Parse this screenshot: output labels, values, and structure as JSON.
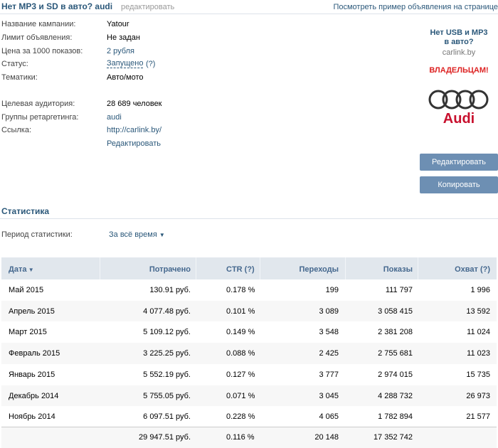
{
  "header": {
    "title": "Нет MP3 и SD в авто? audi",
    "edit": "редактировать",
    "preview_link": "Посмотреть пример объявления на странице"
  },
  "fields": [
    {
      "label": "Название кампании:",
      "value": "Yatour"
    },
    {
      "label": "Лимит объявления:",
      "value": "Не задан"
    },
    {
      "label": "Цена за 1000 показов:",
      "value": "2 рубля"
    },
    {
      "label": "Статус:",
      "value": "Запущено",
      "hint": "(?)"
    },
    {
      "label": "Тематики:",
      "value": "Авто/мото"
    },
    {
      "label": "Целевая аудитория:",
      "value": "28 689 человек"
    },
    {
      "label": "Группы ретаргетинга:",
      "value": "audi"
    },
    {
      "label": "Ссылка:",
      "value": "http://carlink.by/"
    }
  ],
  "fields_edit": "Редактировать",
  "ad": {
    "title": "Нет USB и MP3 в авто?",
    "domain": "carlink.by",
    "text": "ВЛАДЕЛЬЦАМ!",
    "logo_text": "Audi"
  },
  "buttons": [
    "Редактировать",
    "Копировать"
  ],
  "stats": {
    "title": "Статистика",
    "period_label": "Период статистики:",
    "period_value": "За всё время",
    "columns": [
      "Дата",
      "Потрачено",
      "CTR (?)",
      "Переходы",
      "Показы",
      "Охват (?)"
    ],
    "rows": [
      [
        "Май 2015",
        "130.91 руб.",
        "0.178 %",
        "199",
        "111 797",
        "1 996"
      ],
      [
        "Апрель 2015",
        "4 077.48 руб.",
        "0.101 %",
        "3 089",
        "3 058 415",
        "13 592"
      ],
      [
        "Март 2015",
        "5 109.12 руб.",
        "0.149 %",
        "3 548",
        "2 381 208",
        "11 024"
      ],
      [
        "Февраль 2015",
        "3 225.25 руб.",
        "0.088 %",
        "2 425",
        "2 755 681",
        "11 023"
      ],
      [
        "Январь 2015",
        "5 552.19 руб.",
        "0.127 %",
        "3 777",
        "2 974 015",
        "15 735"
      ],
      [
        "Декабрь 2014",
        "5 755.05 руб.",
        "0.071 %",
        "3 045",
        "4 288 732",
        "26 973"
      ],
      [
        "Ноябрь 2014",
        "6 097.51 руб.",
        "0.228 %",
        "4 065",
        "1 782 894",
        "21 577"
      ]
    ],
    "totals": {
      "spent": "29 947.51 руб.",
      "ctr": "0.116 %",
      "clicks": "20 148",
      "impressions": "17 352 742"
    }
  }
}
